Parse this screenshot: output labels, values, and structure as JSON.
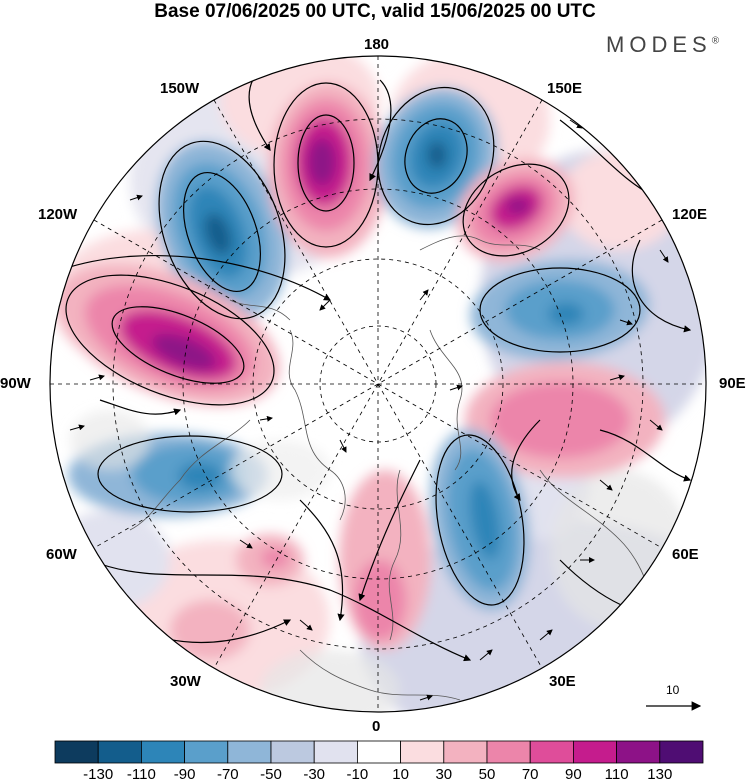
{
  "header": {
    "title": "Base 07/06/2025 00 UTC, valid 15/06/2025 00 UTC",
    "brand": "MODES",
    "brand_mark": "®"
  },
  "map_labels": {
    "top": "180",
    "bottom": "0",
    "left": "90W",
    "right": "90E",
    "upper_left": "150W",
    "upper_right": "150E",
    "mid_upper_left": "120W",
    "mid_upper_right": "120E",
    "mid_lower_left": "60W",
    "mid_lower_right": "60E",
    "lower_left": "30W",
    "lower_right": "30E"
  },
  "reference_vector": {
    "value": "10"
  },
  "colorbar": {
    "colors": [
      "#0d3b5e",
      "#135d8c",
      "#2d85b8",
      "#5a9fcb",
      "#8fb6d8",
      "#bcc9e0",
      "#e1e2ef",
      "#ffffff",
      "#fbdde0",
      "#f3b2c0",
      "#ec85aa",
      "#df4d9a",
      "#c51c8d",
      "#8d1287",
      "#4f0d73"
    ],
    "tick_labels": [
      "-130",
      "-110",
      "-90",
      "-70",
      "-50",
      "-30",
      "-10",
      "10",
      "30",
      "50",
      "70",
      "90",
      "110",
      "130"
    ]
  }
}
